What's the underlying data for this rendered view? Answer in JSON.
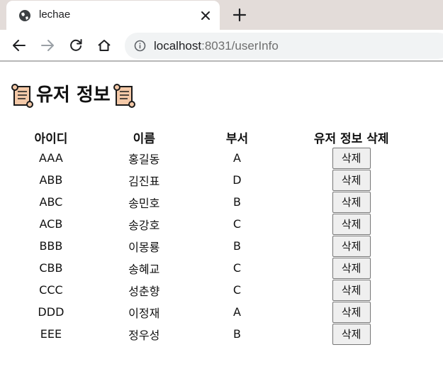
{
  "browser": {
    "tab_title": "lechae",
    "url_host": "localhost",
    "url_rest": ":8031/userInfo"
  },
  "page": {
    "heading": "유저 정보",
    "columns": [
      "아이디",
      "이름",
      "부서",
      "유저 정보 삭제"
    ],
    "delete_label": "삭제",
    "rows": [
      {
        "id": "AAA",
        "name": "홍길동",
        "dept": "A"
      },
      {
        "id": "ABB",
        "name": "김진표",
        "dept": "D"
      },
      {
        "id": "ABC",
        "name": "송민호",
        "dept": "B"
      },
      {
        "id": "ACB",
        "name": "송강호",
        "dept": "C"
      },
      {
        "id": "BBB",
        "name": "이몽룡",
        "dept": "B"
      },
      {
        "id": "CBB",
        "name": "송혜교",
        "dept": "C"
      },
      {
        "id": "CCC",
        "name": "성춘향",
        "dept": "C"
      },
      {
        "id": "DDD",
        "name": "이정재",
        "dept": "A"
      },
      {
        "id": "EEE",
        "name": "정우성",
        "dept": "B"
      }
    ]
  },
  "icons": {
    "favicon": "globe-icon",
    "tab_close": "close-icon",
    "new_tab": "plus-icon",
    "back": "arrow-left-icon",
    "forward": "arrow-right-icon",
    "reload": "reload-icon",
    "home": "home-icon",
    "site_info": "info-icon",
    "heading_decoration": "scroll-icon"
  },
  "colors": {
    "tabstrip": "#e3dcd9",
    "omnibox": "#f1f3f4",
    "scroll_fill": "#f4c9a8",
    "button_bg": "#efefef"
  }
}
